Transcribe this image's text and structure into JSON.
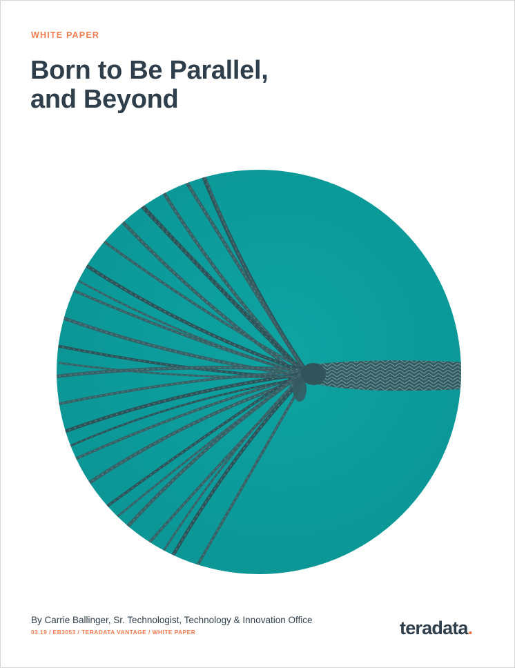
{
  "header": {
    "kicker": "WHITE PAPER",
    "title_line1": "Born to Be Parallel,",
    "title_line2": "and Beyond"
  },
  "footer": {
    "byline": "By Carrie Ballinger, Sr. Technologist, Technology & Innovation Office",
    "meta": "03.19 / EB3053 / TERADATA VANTAGE / WHITE PAPER"
  },
  "logo": {
    "text": "teradata",
    "dot": "."
  },
  "colors": {
    "accent": "#f07c4f",
    "heading": "#2f3e4b",
    "hero_teal": "#0a9c9c",
    "rope": "#34565c"
  }
}
